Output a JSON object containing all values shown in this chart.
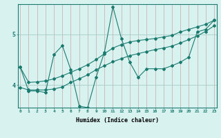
{
  "xlabel": "Humidex (Indice chaleur)",
  "bg_color": "#d8f2f0",
  "line_color": "#1a7a6e",
  "vgrid_color": "#c8a8a8",
  "hgrid_color": "#a8ccc8",
  "xticks": [
    0,
    1,
    2,
    3,
    4,
    5,
    6,
    7,
    8,
    9,
    10,
    11,
    12,
    13,
    14,
    15,
    16,
    17,
    18,
    19,
    20,
    21,
    22,
    23
  ],
  "yticks": [
    4,
    5
  ],
  "ylim": [
    3.55,
    5.6
  ],
  "xlim": [
    -0.3,
    23.3
  ],
  "series": [
    [
      4.35,
      3.88,
      3.88,
      3.85,
      4.6,
      4.78,
      4.3,
      3.58,
      3.55,
      4.15,
      4.65,
      5.55,
      4.92,
      4.45,
      4.15,
      4.32,
      4.32,
      4.32,
      4.38,
      4.45,
      4.55,
      5.05,
      5.1,
      5.28
    ],
    [
      3.95,
      3.9,
      3.9,
      3.9,
      3.92,
      3.96,
      4.05,
      4.12,
      4.2,
      4.3,
      4.38,
      4.46,
      4.52,
      4.58,
      4.62,
      4.66,
      4.7,
      4.73,
      4.77,
      4.83,
      4.9,
      4.97,
      5.06,
      5.17
    ],
    [
      4.35,
      4.05,
      4.06,
      4.08,
      4.12,
      4.18,
      4.25,
      4.32,
      4.4,
      4.5,
      4.62,
      4.73,
      4.8,
      4.85,
      4.88,
      4.9,
      4.92,
      4.95,
      4.98,
      5.05,
      5.1,
      5.15,
      5.2,
      5.28
    ]
  ]
}
